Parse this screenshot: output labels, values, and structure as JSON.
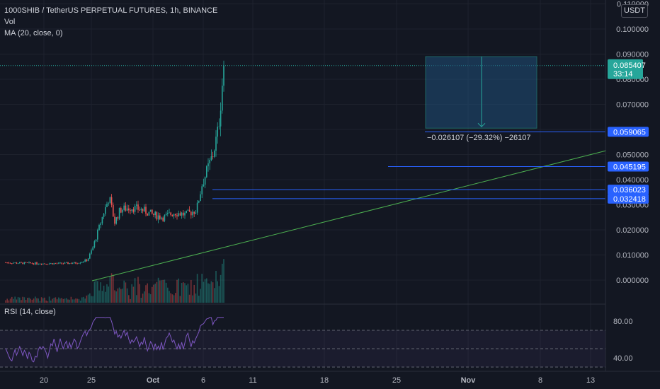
{
  "header": {
    "symbol_title": "1000SHIB / TetherUS PERPETUAL FUTURES, 1h, BINANCE",
    "vol_label": "Vol",
    "ma_label": "MA (20, close, 0)",
    "currency": "USDT"
  },
  "rsi_panel": {
    "label": "RSI (14, close)"
  },
  "price_labels": {
    "last_price": "0.085407",
    "countdown": "33:14",
    "levels": [
      "0.059065",
      "0.045195",
      "0.036023",
      "0.032418"
    ]
  },
  "measure": {
    "text": "−0.026107 (−29.32%) −26107"
  },
  "colors": {
    "background": "#131722",
    "up": "#26a69a",
    "down": "#ef5350",
    "rsi_line": "#7e57c2",
    "trendline": "#4caf50",
    "level_label": "#2962ff"
  },
  "chart_data": {
    "type": "candlestick",
    "title": "1000SHIB / TetherUS PERPETUAL FUTURES, 1h, BINANCE",
    "interval": "1h",
    "price_axis": {
      "ticks": [
        "0.110000",
        "0.100000",
        "0.090000",
        "0.080000",
        "0.070000",
        "0.060000",
        "0.050000",
        "0.040000",
        "0.030000",
        "0.020000",
        "0.010000",
        "0.000000"
      ]
    },
    "rsi_axis": {
      "ticks": [
        "80.00",
        "40.00"
      ],
      "bands": [
        70,
        50,
        30
      ]
    },
    "time_axis": {
      "ticks": [
        "20",
        "25",
        "Oct",
        "6",
        "11",
        "18",
        "25",
        "Nov",
        "8",
        "13"
      ]
    },
    "approx_close_by_day": [
      [
        "Sep 18",
        0.007
      ],
      [
        "Sep 20",
        0.0068
      ],
      [
        "Sep 25",
        0.0066
      ],
      [
        "Sep 28",
        0.0066
      ],
      [
        "Oct 1",
        0.0068
      ],
      [
        "Oct 3",
        0.008
      ],
      [
        "Oct 4",
        0.013
      ],
      [
        "Oct 5",
        0.02
      ],
      [
        "Oct 6",
        0.027
      ],
      [
        "Oct 7",
        0.033
      ],
      [
        "Oct 8",
        0.023
      ],
      [
        "Oct 9",
        0.028
      ],
      [
        "Oct 11",
        0.029
      ],
      [
        "Oct 13",
        0.028
      ],
      [
        "Oct 15",
        0.026
      ],
      [
        "Oct 17",
        0.025
      ],
      [
        "Oct 19",
        0.027
      ],
      [
        "Oct 21",
        0.026
      ],
      [
        "Oct 23",
        0.028
      ],
      [
        "Oct 24",
        0.038
      ],
      [
        "Oct 25",
        0.044
      ],
      [
        "Oct 26",
        0.05
      ],
      [
        "Oct 27",
        0.06
      ],
      [
        "Oct 28",
        0.0854
      ]
    ],
    "horizontal_levels": [
      0.059065,
      0.045195,
      0.036023,
      0.032418
    ],
    "last_price": 0.085407,
    "measure_box": {
      "from": 0.089,
      "to": 0.0605,
      "change": -0.026107,
      "change_pct": -29.32
    }
  }
}
